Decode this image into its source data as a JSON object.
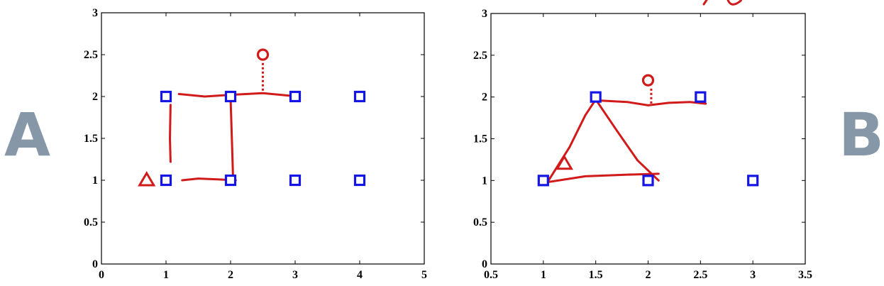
{
  "panel_labels": {
    "left": "A",
    "right": "B"
  },
  "colors": {
    "marker_blue": "#1515e6",
    "annotation_red": "#d11a1a",
    "label_gray": "#8697a8"
  },
  "chart_data": [
    {
      "type": "scatter",
      "panel": "A",
      "xlim": [
        0,
        5
      ],
      "ylim": [
        0,
        3
      ],
      "xticks": [
        "0",
        "1",
        "2",
        "3",
        "4",
        "5"
      ],
      "yticks": [
        "0",
        "0.5",
        "1",
        "1.5",
        "2",
        "2.5",
        "3"
      ],
      "xtick_values": [
        0,
        1,
        2,
        3,
        4,
        5
      ],
      "ytick_values": [
        0,
        0.5,
        1,
        1.5,
        2,
        2.5,
        3
      ],
      "grid": false,
      "series": [
        {
          "marker": "square",
          "points": [
            [
              1,
              2
            ],
            [
              2,
              2
            ],
            [
              3,
              2
            ],
            [
              4,
              2
            ],
            [
              1,
              1
            ],
            [
              2,
              1
            ],
            [
              3,
              1
            ],
            [
              4,
              1
            ]
          ]
        },
        {
          "marker": "triangle",
          "points": [
            [
              0.7,
              1
            ]
          ]
        },
        {
          "marker": "circle",
          "points": [
            [
              2.5,
              2.5
            ]
          ]
        }
      ],
      "annotations": {
        "strokes": [
          [
            [
              1.2,
              2.03
            ],
            [
              1.6,
              2.0
            ],
            [
              2.0,
              2.02
            ],
            [
              2.5,
              2.04
            ],
            [
              3.05,
              2.0
            ]
          ],
          [
            [
              1.25,
              1.0
            ],
            [
              1.5,
              1.02
            ],
            [
              1.8,
              1.01
            ],
            [
              2.08,
              1.0
            ]
          ],
          [
            [
              1.07,
              1.9
            ],
            [
              1.06,
              1.5
            ],
            [
              1.07,
              1.22
            ]
          ],
          [
            [
              2.0,
              1.98
            ],
            [
              2.02,
              1.5
            ],
            [
              2.04,
              1.0
            ]
          ]
        ],
        "dashed": [
          [
            [
              2.5,
              2.4
            ],
            [
              2.5,
              2.06
            ]
          ]
        ]
      }
    },
    {
      "type": "scatter",
      "panel": "B",
      "xlim": [
        0.5,
        3.5
      ],
      "ylim": [
        0,
        3
      ],
      "xticks": [
        "0.5",
        "1",
        "1.5",
        "2",
        "2.5",
        "3",
        "3.5"
      ],
      "yticks": [
        "0",
        "0.5",
        "1",
        "1.5",
        "2",
        "2.5",
        "3"
      ],
      "xtick_values": [
        0.5,
        1,
        1.5,
        2,
        2.5,
        3,
        3.5
      ],
      "ytick_values": [
        0,
        0.5,
        1,
        1.5,
        2,
        2.5,
        3
      ],
      "grid": false,
      "series": [
        {
          "marker": "square",
          "points": [
            [
              1.5,
              2
            ],
            [
              2.5,
              2
            ],
            [
              1,
              1
            ],
            [
              2,
              1
            ],
            [
              3,
              1
            ]
          ]
        },
        {
          "marker": "triangle",
          "points": [
            [
              1.2,
              1.2
            ]
          ]
        },
        {
          "marker": "circle",
          "points": [
            [
              2,
              2.2
            ]
          ]
        }
      ],
      "annotations": {
        "strokes": [
          [
            [
              1.04,
              0.98
            ],
            [
              1.25,
              1.4
            ],
            [
              1.4,
              1.78
            ],
            [
              1.5,
              1.97
            ],
            [
              1.7,
              1.6
            ],
            [
              1.9,
              1.24
            ],
            [
              2.1,
              1.0
            ]
          ],
          [
            [
              1.04,
              0.98
            ],
            [
              1.4,
              1.05
            ],
            [
              1.8,
              1.07
            ],
            [
              2.1,
              1.08
            ]
          ],
          [
            [
              1.5,
              1.96
            ],
            [
              1.8,
              1.94
            ],
            [
              2.0,
              1.9
            ],
            [
              2.2,
              1.93
            ],
            [
              2.4,
              1.94
            ],
            [
              2.55,
              1.92
            ]
          ]
        ],
        "dashed": [
          [
            [
              2.03,
              2.1
            ],
            [
              2.03,
              1.92
            ]
          ]
        ]
      }
    }
  ]
}
